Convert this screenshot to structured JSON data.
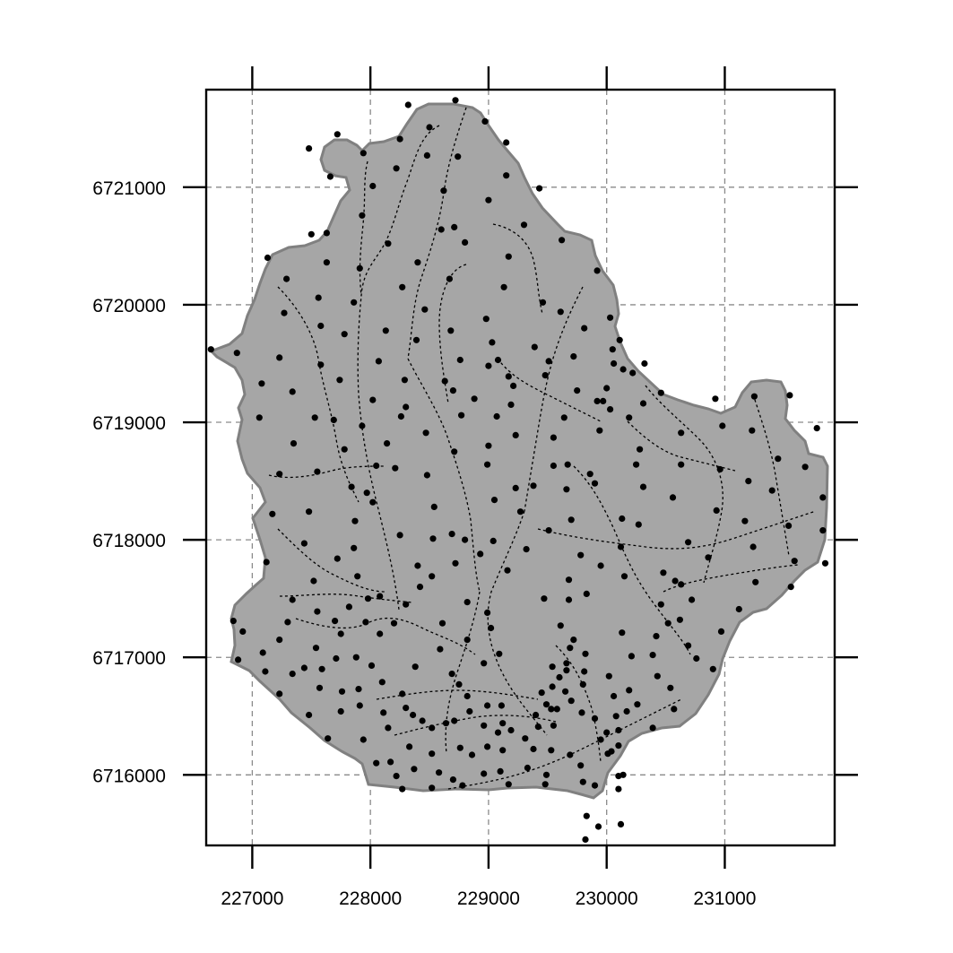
{
  "map": {
    "x_ticks": [
      "227000",
      "228000",
      "229000",
      "230000",
      "231000"
    ],
    "y_ticks": [
      "6721000",
      "6720000",
      "6719000",
      "6718000",
      "6717000",
      "6716000"
    ],
    "grid": true,
    "colors": {
      "background": "#ffffff",
      "catchment_fill": "#a6a6a6",
      "catchment_border": "#808080",
      "grid": "#8a8a8a",
      "streams": "#000000",
      "points": "#000000"
    }
  },
  "chart_data": {
    "type": "scatter",
    "xlim": [
      226610,
      231930
    ],
    "ylim": [
      6715400,
      6721830
    ],
    "x_ticks": [
      227000,
      228000,
      229000,
      230000,
      231000
    ],
    "y_ticks": [
      6716000,
      6717000,
      6718000,
      6719000,
      6720000,
      6721000
    ],
    "grid": true,
    "layers": [
      "catchment polygon",
      "stream network",
      "sample points"
    ],
    "points": [
      [
        228320,
        6721700
      ],
      [
        228720,
        6721740
      ],
      [
        228500,
        6721510
      ],
      [
        228970,
        6721560
      ],
      [
        228250,
        6721410
      ],
      [
        227720,
        6721450
      ],
      [
        227480,
        6721330
      ],
      [
        229150,
        6721380
      ],
      [
        227940,
        6721290
      ],
      [
        228480,
        6721270
      ],
      [
        228740,
        6721260
      ],
      [
        228220,
        6721160
      ],
      [
        227660,
        6721090
      ],
      [
        229150,
        6721100
      ],
      [
        228020,
        6721010
      ],
      [
        229430,
        6720990
      ],
      [
        228620,
        6720970
      ],
      [
        229000,
        6720890
      ],
      [
        227930,
        6720760
      ],
      [
        228710,
        6720660
      ],
      [
        229300,
        6720680
      ],
      [
        227500,
        6720600
      ],
      [
        227630,
        6720610
      ],
      [
        228600,
        6720640
      ],
      [
        228150,
        6720520
      ],
      [
        228800,
        6720530
      ],
      [
        229620,
        6720550
      ],
      [
        227130,
        6720400
      ],
      [
        229170,
        6720410
      ],
      [
        227630,
        6720360
      ],
      [
        228400,
        6720360
      ],
      [
        227910,
        6720310
      ],
      [
        229920,
        6720290
      ],
      [
        227290,
        6720220
      ],
      [
        228670,
        6720220
      ],
      [
        228270,
        6720150
      ],
      [
        229130,
        6720150
      ],
      [
        227560,
        6720060
      ],
      [
        227860,
        6720020
      ],
      [
        229460,
        6720020
      ],
      [
        228460,
        6719960
      ],
      [
        229610,
        6719940
      ],
      [
        227270,
        6719930
      ],
      [
        228980,
        6719880
      ],
      [
        230030,
        6719890
      ],
      [
        227580,
        6719820
      ],
      [
        228130,
        6719780
      ],
      [
        228680,
        6719780
      ],
      [
        229810,
        6719800
      ],
      [
        227780,
        6719750
      ],
      [
        228390,
        6719700
      ],
      [
        229030,
        6719680
      ],
      [
        230110,
        6719700
      ],
      [
        226650,
        6719620
      ],
      [
        226870,
        6719590
      ],
      [
        229390,
        6719640
      ],
      [
        230050,
        6719620
      ],
      [
        227230,
        6719550
      ],
      [
        228070,
        6719520
      ],
      [
        228760,
        6719530
      ],
      [
        229080,
        6719530
      ],
      [
        229510,
        6719520
      ],
      [
        229720,
        6719560
      ],
      [
        230060,
        6719500
      ],
      [
        230320,
        6719500
      ],
      [
        227580,
        6719490
      ],
      [
        229000,
        6719480
      ],
      [
        230140,
        6719450
      ],
      [
        230220,
        6719420
      ],
      [
        229170,
        6719390
      ],
      [
        229480,
        6719400
      ],
      [
        227740,
        6719360
      ],
      [
        228290,
        6719360
      ],
      [
        228630,
        6719350
      ],
      [
        229210,
        6719310
      ],
      [
        230000,
        6719290
      ],
      [
        227080,
        6719330
      ],
      [
        227340,
        6719260
      ],
      [
        228700,
        6719270
      ],
      [
        229750,
        6719270
      ],
      [
        230460,
        6719250
      ],
      [
        228020,
        6719190
      ],
      [
        228880,
        6719200
      ],
      [
        229970,
        6719180
      ],
      [
        230920,
        6719200
      ],
      [
        231250,
        6719220
      ],
      [
        231550,
        6719230
      ],
      [
        228300,
        6719130
      ],
      [
        229920,
        6719180
      ],
      [
        230310,
        6719160
      ],
      [
        229190,
        6719150
      ],
      [
        230030,
        6719110
      ],
      [
        227530,
        6719040
      ],
      [
        227690,
        6719020
      ],
      [
        228260,
        6719050
      ],
      [
        228770,
        6719060
      ],
      [
        229070,
        6719050
      ],
      [
        229640,
        6719040
      ],
      [
        230190,
        6719040
      ],
      [
        227060,
        6719040
      ],
      [
        227930,
        6718970
      ],
      [
        229940,
        6718930
      ],
      [
        230980,
        6718970
      ],
      [
        231230,
        6718930
      ],
      [
        231780,
        6718950
      ],
      [
        228470,
        6718910
      ],
      [
        229230,
        6718890
      ],
      [
        227350,
        6718820
      ],
      [
        228140,
        6718820
      ],
      [
        229550,
        6718870
      ],
      [
        230630,
        6718910
      ],
      [
        229000,
        6718800
      ],
      [
        227780,
        6718770
      ],
      [
        228710,
        6718750
      ],
      [
        230280,
        6718770
      ],
      [
        231450,
        6718690
      ],
      [
        231680,
        6718620
      ],
      [
        228050,
        6718630
      ],
      [
        228990,
        6718640
      ],
      [
        229550,
        6718630
      ],
      [
        229670,
        6718640
      ],
      [
        230250,
        6718640
      ],
      [
        230630,
        6718640
      ],
      [
        227230,
        6718560
      ],
      [
        227550,
        6718580
      ],
      [
        228210,
        6718610
      ],
      [
        228480,
        6718550
      ],
      [
        229860,
        6718560
      ],
      [
        230960,
        6718600
      ],
      [
        227840,
        6718450
      ],
      [
        229900,
        6718480
      ],
      [
        231200,
        6718500
      ],
      [
        231400,
        6718420
      ],
      [
        227970,
        6718400
      ],
      [
        229660,
        6718430
      ],
      [
        230310,
        6718450
      ],
      [
        231830,
        6718360
      ],
      [
        228020,
        6718320
      ],
      [
        229230,
        6718440
      ],
      [
        229380,
        6718460
      ],
      [
        229050,
        6718340
      ],
      [
        230560,
        6718360
      ],
      [
        227480,
        6718240
      ],
      [
        228540,
        6718280
      ],
      [
        229270,
        6718240
      ],
      [
        230930,
        6718250
      ],
      [
        227170,
        6718220
      ],
      [
        227870,
        6718160
      ],
      [
        229700,
        6718170
      ],
      [
        230130,
        6718180
      ],
      [
        231170,
        6718160
      ],
      [
        230270,
        6718130
      ],
      [
        231540,
        6718120
      ],
      [
        228250,
        6718040
      ],
      [
        228690,
        6718050
      ],
      [
        229510,
        6718080
      ],
      [
        231830,
        6718080
      ],
      [
        228530,
        6718010
      ],
      [
        228800,
        6718000
      ],
      [
        229040,
        6717990
      ],
      [
        230120,
        6717940
      ],
      [
        227440,
        6717970
      ],
      [
        227860,
        6717930
      ],
      [
        229320,
        6717920
      ],
      [
        231240,
        6717940
      ],
      [
        230690,
        6717980
      ],
      [
        228930,
        6717880
      ],
      [
        229780,
        6717870
      ],
      [
        227120,
        6717810
      ],
      [
        227720,
        6717840
      ],
      [
        231590,
        6717820
      ],
      [
        230860,
        6717850
      ],
      [
        228400,
        6717780
      ],
      [
        228720,
        6717800
      ],
      [
        229950,
        6717780
      ],
      [
        230480,
        6717720
      ],
      [
        229160,
        6717740
      ],
      [
        227890,
        6717690
      ],
      [
        228520,
        6717690
      ],
      [
        229680,
        6717660
      ],
      [
        230150,
        6717690
      ],
      [
        231850,
        6717800
      ],
      [
        227520,
        6717650
      ],
      [
        228420,
        6717600
      ],
      [
        228080,
        6717520
      ],
      [
        230580,
        6717650
      ],
      [
        230630,
        6717620
      ],
      [
        231260,
        6717640
      ],
      [
        227980,
        6717500
      ],
      [
        229470,
        6717500
      ],
      [
        229830,
        6717540
      ],
      [
        231560,
        6717600
      ],
      [
        227340,
        6717490
      ],
      [
        227820,
        6717430
      ],
      [
        228820,
        6717470
      ],
      [
        229680,
        6717490
      ],
      [
        230720,
        6717490
      ],
      [
        230460,
        6717450
      ],
      [
        227550,
        6717390
      ],
      [
        228300,
        6717450
      ],
      [
        228990,
        6717380
      ],
      [
        231120,
        6717410
      ],
      [
        227700,
        6717310
      ],
      [
        228200,
        6717290
      ],
      [
        229020,
        6717250
      ],
      [
        230620,
        6717320
      ],
      [
        230520,
        6717290
      ],
      [
        227300,
        6717300
      ],
      [
        227960,
        6717300
      ],
      [
        228610,
        6717290
      ],
      [
        226840,
        6717310
      ],
      [
        227750,
        6717200
      ],
      [
        229610,
        6717270
      ],
      [
        230130,
        6717210
      ],
      [
        230970,
        6717220
      ],
      [
        226920,
        6717220
      ],
      [
        228080,
        6717200
      ],
      [
        229720,
        6717150
      ],
      [
        230420,
        6717180
      ],
      [
        227230,
        6717150
      ],
      [
        228820,
        6717150
      ],
      [
        229690,
        6717080
      ],
      [
        227540,
        6717080
      ],
      [
        227880,
        6717000
      ],
      [
        228590,
        6717070
      ],
      [
        229820,
        6717030
      ],
      [
        230390,
        6717020
      ],
      [
        230690,
        6717100
      ],
      [
        227090,
        6717040
      ],
      [
        226880,
        6716980
      ],
      [
        227710,
        6716990
      ],
      [
        229090,
        6717030
      ],
      [
        229660,
        6716950
      ],
      [
        230210,
        6717010
      ],
      [
        228010,
        6716930
      ],
      [
        228960,
        6716950
      ],
      [
        229540,
        6716920
      ],
      [
        230760,
        6716990
      ],
      [
        227440,
        6716910
      ],
      [
        227590,
        6716900
      ],
      [
        228380,
        6716920
      ],
      [
        229660,
        6716890
      ],
      [
        229810,
        6716880
      ],
      [
        227110,
        6716880
      ],
      [
        228690,
        6716860
      ],
      [
        229600,
        6716830
      ],
      [
        230020,
        6716840
      ],
      [
        230430,
        6716840
      ],
      [
        230900,
        6716900
      ],
      [
        227340,
        6716860
      ],
      [
        228100,
        6716790
      ],
      [
        229800,
        6716770
      ],
      [
        227900,
        6716730
      ],
      [
        228750,
        6716770
      ],
      [
        229540,
        6716750
      ],
      [
        230190,
        6716720
      ],
      [
        230540,
        6716740
      ],
      [
        227570,
        6716740
      ],
      [
        227230,
        6716690
      ],
      [
        228270,
        6716690
      ],
      [
        229650,
        6716710
      ],
      [
        229450,
        6716700
      ],
      [
        227760,
        6716710
      ],
      [
        228820,
        6716670
      ],
      [
        230060,
        6716670
      ],
      [
        229700,
        6716630
      ],
      [
        229490,
        6716600
      ],
      [
        229530,
        6716560
      ],
      [
        228990,
        6716590
      ],
      [
        229110,
        6716590
      ],
      [
        227910,
        6716590
      ],
      [
        228300,
        6716570
      ],
      [
        228840,
        6716540
      ],
      [
        229580,
        6716560
      ],
      [
        230170,
        6716540
      ],
      [
        230260,
        6716600
      ],
      [
        228110,
        6716530
      ],
      [
        227750,
        6716540
      ],
      [
        229790,
        6716530
      ],
      [
        229400,
        6716510
      ],
      [
        230080,
        6716500
      ],
      [
        230570,
        6716560
      ],
      [
        228360,
        6716510
      ],
      [
        227480,
        6716510
      ],
      [
        229900,
        6716480
      ],
      [
        228440,
        6716460
      ],
      [
        228710,
        6716460
      ],
      [
        229120,
        6716440
      ],
      [
        228640,
        6716440
      ],
      [
        229550,
        6716420
      ],
      [
        228960,
        6716420
      ],
      [
        229420,
        6716410
      ],
      [
        229190,
        6716380
      ],
      [
        229080,
        6716360
      ],
      [
        228150,
        6716400
      ],
      [
        230390,
        6716400
      ],
      [
        228520,
        6716400
      ],
      [
        230100,
        6716380
      ],
      [
        230000,
        6716360
      ],
      [
        227640,
        6716310
      ],
      [
        227940,
        6716300
      ],
      [
        229310,
        6716310
      ],
      [
        229950,
        6716300
      ],
      [
        230100,
        6716250
      ],
      [
        228330,
        6716240
      ],
      [
        229380,
        6716220
      ],
      [
        228760,
        6716230
      ],
      [
        228990,
        6716240
      ],
      [
        229530,
        6716210
      ],
      [
        229120,
        6716210
      ],
      [
        230040,
        6716200
      ],
      [
        230010,
        6716180
      ],
      [
        228520,
        6716180
      ],
      [
        228860,
        6716170
      ],
      [
        229690,
        6716170
      ],
      [
        228170,
        6716110
      ],
      [
        228050,
        6716100
      ],
      [
        229780,
        6716080
      ],
      [
        229100,
        6716030
      ],
      [
        229330,
        6716060
      ],
      [
        228370,
        6716050
      ],
      [
        228960,
        6716010
      ],
      [
        229490,
        6716000
      ],
      [
        228580,
        6716020
      ],
      [
        230140,
        6716000
      ],
      [
        228220,
        6715990
      ],
      [
        228700,
        6715960
      ],
      [
        230100,
        6715990
      ],
      [
        229170,
        6715920
      ],
      [
        229800,
        6715940
      ],
      [
        230100,
        6715880
      ],
      [
        228270,
        6715880
      ],
      [
        228780,
        6715910
      ],
      [
        229480,
        6715920
      ],
      [
        229900,
        6715910
      ],
      [
        228520,
        6715890
      ],
      [
        229830,
        6715650
      ],
      [
        229930,
        6715560
      ],
      [
        230120,
        6715580
      ],
      [
        229820,
        6715450
      ]
    ]
  }
}
